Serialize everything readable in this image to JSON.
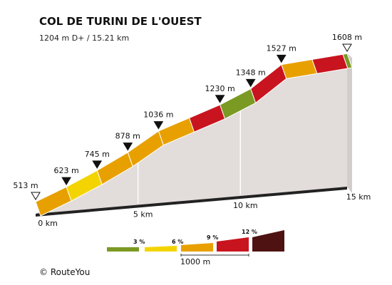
{
  "header": {
    "title": "COL DE TURINI DE L'OUEST",
    "subtitle": "1204 m D+ / 15.21 km"
  },
  "footer": {
    "credit": "© RouteYou"
  },
  "legend": {
    "items": [
      {
        "label": "3 %",
        "color": "#7a9a23"
      },
      {
        "label": "6 %",
        "color": "#f3d400"
      },
      {
        "label": "9 %",
        "color": "#e8a000"
      },
      {
        "label": "12 %",
        "color": "#c8141e"
      },
      {
        "label": "",
        "color": "#4e1212"
      }
    ],
    "scale_label": "1000 m"
  },
  "chart_data": {
    "type": "area",
    "title": "COL DE TURINI DE L'OUEST",
    "subtitle": "1204 m D+ / 15.21 km",
    "x_unit": "km",
    "x_ticks": [
      {
        "value": 0,
        "label": "0 km"
      },
      {
        "value": 5,
        "label": "5 km"
      },
      {
        "value": 10,
        "label": "10 km"
      },
      {
        "value": 15,
        "label": "15 km"
      }
    ],
    "x_range": [
      0,
      15.21
    ],
    "y_range": [
      513,
      1608
    ],
    "markers": [
      {
        "km": 0,
        "elevation": 513,
        "label": "513 m",
        "type": "endpoint"
      },
      {
        "km": 1.5,
        "elevation": 623,
        "label": "623 m",
        "type": "km"
      },
      {
        "km": 3,
        "elevation": 745,
        "label": "745 m",
        "type": "km"
      },
      {
        "km": 4.5,
        "elevation": 878,
        "label": "878 m",
        "type": "km"
      },
      {
        "km": 6,
        "elevation": 1036,
        "label": "1036 m",
        "type": "km"
      },
      {
        "km": 9,
        "elevation": 1230,
        "label": "1230 m",
        "type": "km"
      },
      {
        "km": 10.5,
        "elevation": 1348,
        "label": "1348 m",
        "type": "km"
      },
      {
        "km": 12,
        "elevation": 1527,
        "label": "1527 m",
        "type": "km"
      },
      {
        "km": 15.21,
        "elevation": 1608,
        "label": "1608 m",
        "type": "endpoint"
      }
    ],
    "segments": [
      {
        "from_km": 0,
        "to_km": 1.5,
        "gradient_class": "9 %"
      },
      {
        "from_km": 1.5,
        "to_km": 3,
        "gradient_class": "6 %"
      },
      {
        "from_km": 3,
        "to_km": 4.5,
        "gradient_class": "9 %"
      },
      {
        "from_km": 4.5,
        "to_km": 6,
        "gradient_class": "9 %"
      },
      {
        "from_km": 6,
        "to_km": 7.5,
        "gradient_class": "9 %"
      },
      {
        "from_km": 7.5,
        "to_km": 9,
        "gradient_class": "12 %"
      },
      {
        "from_km": 9,
        "to_km": 10.5,
        "gradient_class": "3 %"
      },
      {
        "from_km": 10.5,
        "to_km": 12,
        "gradient_class": "12 %"
      },
      {
        "from_km": 12,
        "to_km": 13.5,
        "gradient_class": "9 %"
      },
      {
        "from_km": 13.5,
        "to_km": 15,
        "gradient_class": "12 %"
      },
      {
        "from_km": 15,
        "to_km": 15.21,
        "gradient_class": "3 %"
      }
    ]
  }
}
